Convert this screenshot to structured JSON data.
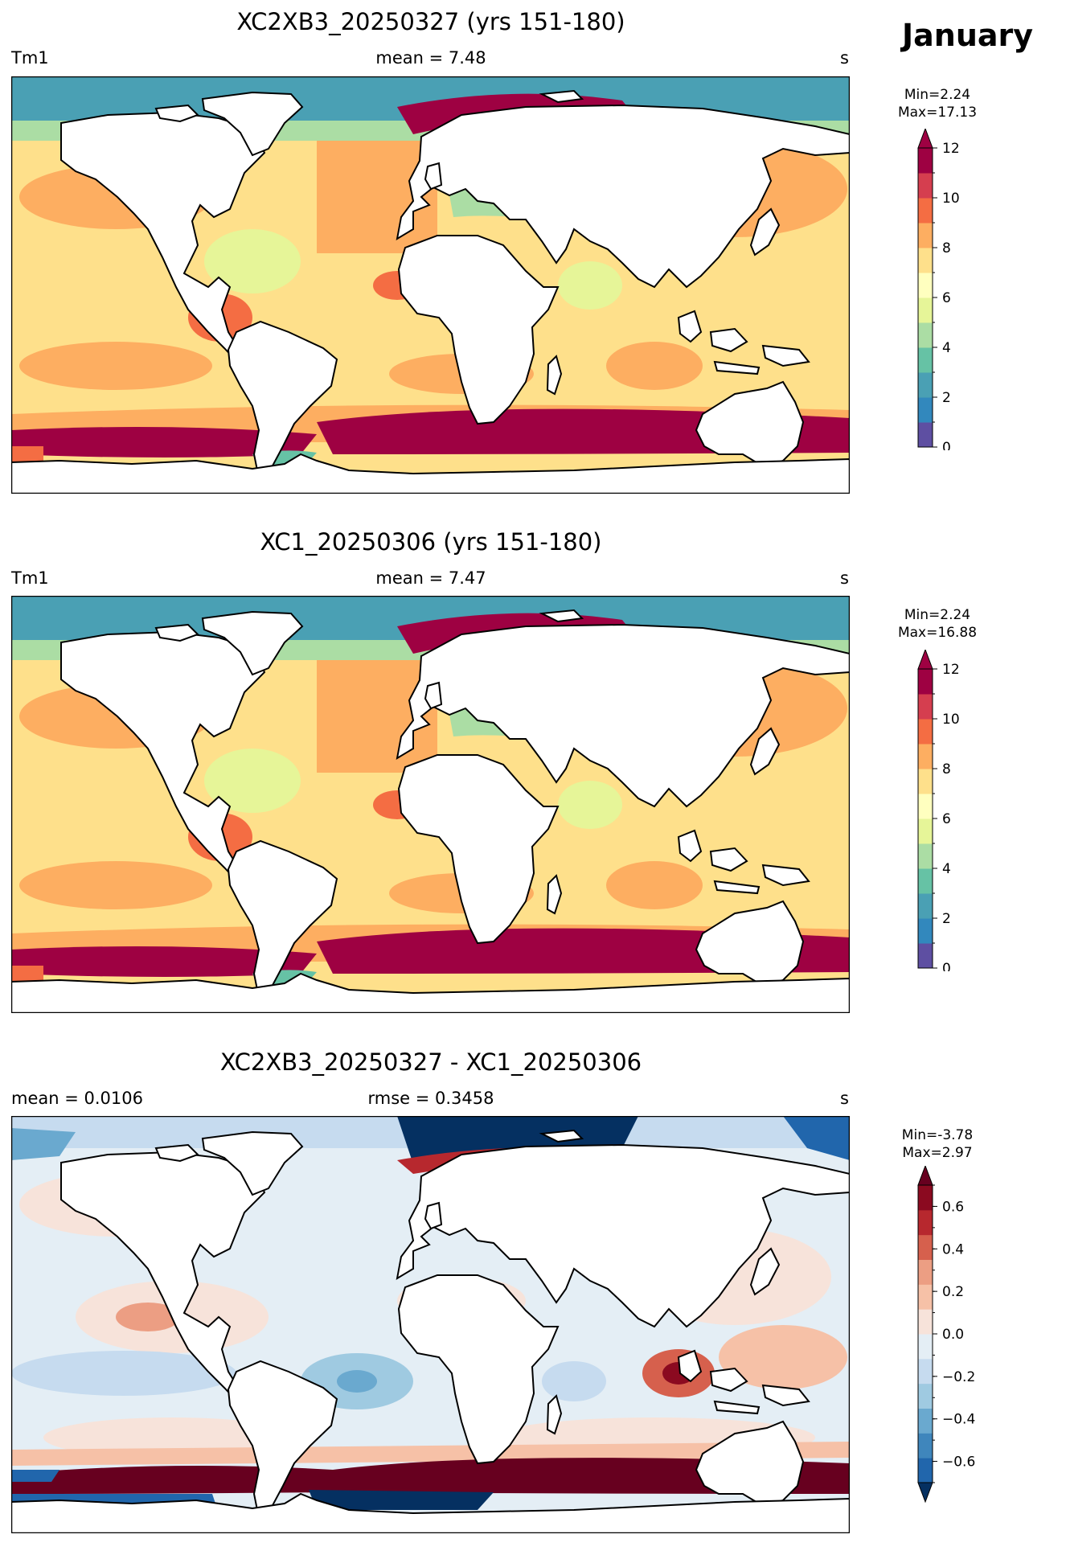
{
  "month": "January",
  "panels": [
    {
      "title": "XC2XB3_20250327 (yrs 151-180)",
      "left_label": "Tm1",
      "center_label": "mean = 7.48",
      "right_label": "s",
      "min_label": "Min=2.24",
      "max_label": "Max=17.13"
    },
    {
      "title": "XC1_20250306 (yrs 151-180)",
      "left_label": "Tm1",
      "center_label": "mean = 7.47",
      "right_label": "s",
      "min_label": "Min=2.24",
      "max_label": "Max=16.88"
    },
    {
      "title": "XC2XB3_20250327 - XC1_20250306",
      "left_label": "mean = 0.0106",
      "center_label": "rmse = 0.3458",
      "right_label": "s",
      "min_label": "Min=-3.78",
      "max_label": "Max=2.97"
    }
  ],
  "colorbars": {
    "field": {
      "ticks": [
        "0",
        "2",
        "4",
        "6",
        "8",
        "10",
        "12"
      ],
      "colors": [
        "#5e4fa2",
        "#3288bd",
        "#4aa0b4",
        "#66c2a5",
        "#abdda4",
        "#e6f598",
        "#ffffbf",
        "#fee08b",
        "#fdae61",
        "#f46d43",
        "#d53e4f",
        "#9e0142"
      ],
      "extend": "max"
    },
    "diff": {
      "ticks": [
        "−0.6",
        "−0.4",
        "−0.2",
        "0.0",
        "0.2",
        "0.4",
        "0.6"
      ],
      "colors": [
        "#2166ac",
        "#3f86bc",
        "#6aa9cf",
        "#9fcae1",
        "#c6dbef",
        "#e4eef5",
        "#f7e3da",
        "#f6c1a7",
        "#ec9e83",
        "#d6604d",
        "#b7282e",
        "#8b0a20"
      ],
      "under_color": "#053061",
      "over_color": "#67001f",
      "extend": "both"
    }
  },
  "chart_data": [
    {
      "type": "heatmap",
      "title": "XC2XB3_20250327 (yrs 151-180)",
      "variable": "Tm1",
      "units": "s",
      "mean": 7.48,
      "min": 2.24,
      "max": 17.13,
      "colorbar_range": [
        0,
        12
      ],
      "colorbar_ticks": [
        0,
        2,
        4,
        6,
        8,
        10,
        12
      ],
      "month": "January"
    },
    {
      "type": "heatmap",
      "title": "XC1_20250306 (yrs 151-180)",
      "variable": "Tm1",
      "units": "s",
      "mean": 7.47,
      "min": 2.24,
      "max": 16.88,
      "colorbar_range": [
        0,
        12
      ],
      "colorbar_ticks": [
        0,
        2,
        4,
        6,
        8,
        10,
        12
      ],
      "month": "January"
    },
    {
      "type": "heatmap",
      "title": "XC2XB3_20250327 - XC1_20250306",
      "units": "s",
      "mean": 0.0106,
      "rmse": 0.3458,
      "min": -3.78,
      "max": 2.97,
      "colorbar_range": [
        -0.7,
        0.7
      ],
      "colorbar_ticks": [
        -0.6,
        -0.4,
        -0.2,
        0.0,
        0.2,
        0.4,
        0.6
      ],
      "month": "January"
    }
  ]
}
